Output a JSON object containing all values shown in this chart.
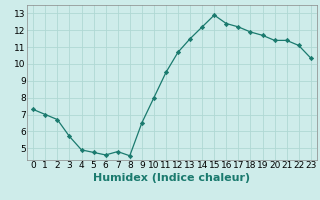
{
  "x": [
    0,
    1,
    2,
    3,
    4,
    5,
    6,
    7,
    8,
    9,
    10,
    11,
    12,
    13,
    14,
    15,
    16,
    17,
    18,
    19,
    20,
    21,
    22,
    23
  ],
  "y": [
    7.3,
    7.0,
    6.7,
    5.7,
    4.9,
    4.75,
    4.6,
    4.8,
    4.55,
    6.5,
    8.0,
    9.5,
    10.7,
    11.5,
    12.2,
    12.9,
    12.4,
    12.2,
    11.9,
    11.7,
    11.4,
    11.4,
    11.1,
    10.35
  ],
  "line_color": "#1a7a6e",
  "marker": "D",
  "marker_size": 2.2,
  "bg_color": "#ceecea",
  "grid_color": "#b0d8d4",
  "xlabel": "Humidex (Indice chaleur)",
  "ylim": [
    4.3,
    13.5
  ],
  "xlim": [
    -0.5,
    23.5
  ],
  "yticks": [
    5,
    6,
    7,
    8,
    9,
    10,
    11,
    12,
    13
  ],
  "xticks": [
    0,
    1,
    2,
    3,
    4,
    5,
    6,
    7,
    8,
    9,
    10,
    11,
    12,
    13,
    14,
    15,
    16,
    17,
    18,
    19,
    20,
    21,
    22,
    23
  ],
  "tick_fontsize": 6.5,
  "xlabel_fontsize": 8,
  "xlabel_fontweight": "bold",
  "linewidth": 0.9
}
